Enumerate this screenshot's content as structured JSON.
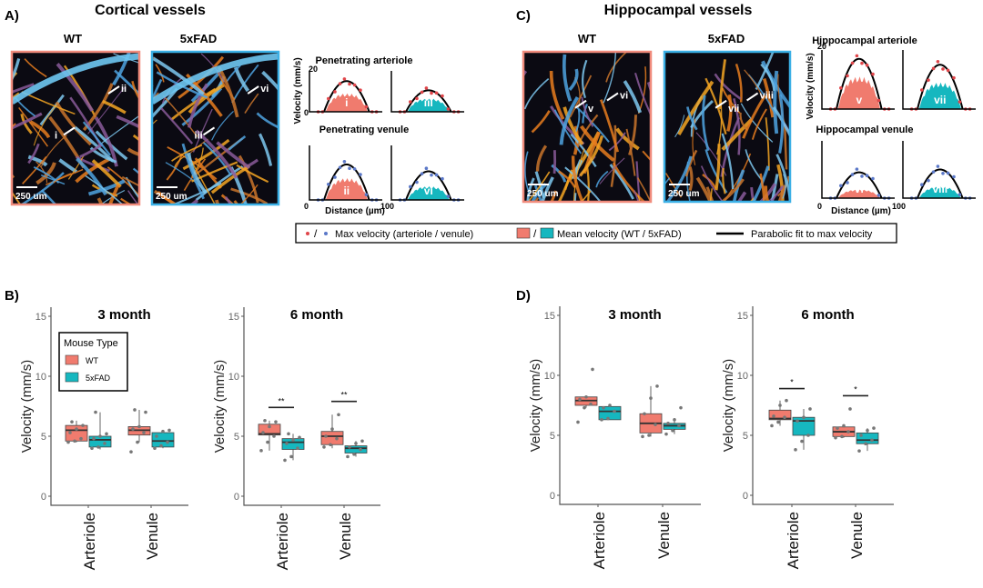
{
  "colors": {
    "wt": "#f07b6e",
    "fad": "#16b7bf",
    "wt_border": "#f08b7c",
    "fad_border": "#3bb0e6",
    "art_dot": "#e0454a",
    "ven_dot": "#5b78c8"
  },
  "panelA": {
    "letter": "A)",
    "title": "Cortical vessels",
    "img_labels": [
      "WT",
      "5xFAD"
    ],
    "scale_bar": "250 um",
    "roi_wt": [
      "i",
      "ii"
    ],
    "roi_fad": [
      "iii",
      "vi"
    ],
    "row_titles": [
      "Penetrating arteriole",
      "Penetrating venule"
    ],
    "ylabel": "Velocity (mm/s)",
    "xlabel": "Distance (µm)",
    "ymax_label": "20",
    "y0_label": "0",
    "x0_label": "0",
    "xmax_label": "100"
  },
  "panelC": {
    "letter": "C)",
    "title": "Hippocampal vessels",
    "img_labels": [
      "WT",
      "5xFAD"
    ],
    "scale_bar": "250 um",
    "roi_wt": [
      "v",
      "vi"
    ],
    "roi_fad": [
      "vii",
      "viii"
    ],
    "row_titles": [
      "Hippocampal arteriole",
      "Hippocampal venule"
    ],
    "ylabel": "Velocity (mm/s)",
    "xlabel": "Distance (µm)",
    "ymax_label": "20",
    "y0_label": "0",
    "x0_label": "0",
    "xmax_label": "100"
  },
  "legend": {
    "slash": "/",
    "max_label": "Max velocity (arteriole / venule)",
    "mean_label": "Mean velocity (WT / 5xFAD)",
    "fit_label": "Parabolic fit to max velocity"
  },
  "chart_data": [
    {
      "type": "line",
      "panel": "A",
      "title": "Penetrating arteriole",
      "label": "i",
      "group": "WT",
      "vessel": "arteriole",
      "ylim": [
        0,
        20
      ],
      "xlim": [
        0,
        100
      ],
      "max_peak": 15,
      "mean_peak": 9
    },
    {
      "type": "line",
      "panel": "A",
      "title": "Penetrating arteriole",
      "label": "iii",
      "group": "5xFAD",
      "vessel": "arteriole",
      "ylim": [
        0,
        20
      ],
      "xlim": [
        0,
        100
      ],
      "max_peak": 10.5,
      "mean_peak": 6.5
    },
    {
      "type": "line",
      "panel": "A",
      "title": "Penetrating venule",
      "label": "ii",
      "group": "WT",
      "vessel": "venule",
      "ylim": [
        0,
        20
      ],
      "xlim": [
        0,
        100
      ],
      "max_peak": 13,
      "mean_peak": 8
    },
    {
      "type": "line",
      "panel": "A",
      "title": "Penetrating venule",
      "label": "vi",
      "group": "5xFAD",
      "vessel": "venule",
      "ylim": [
        0,
        20
      ],
      "xlim": [
        0,
        100
      ],
      "max_peak": 10.5,
      "mean_peak": 5
    },
    {
      "type": "line",
      "panel": "C",
      "title": "Hippocampal arteriole",
      "label": "v",
      "group": "WT",
      "vessel": "arteriole",
      "ylim": [
        0,
        20
      ],
      "xlim": [
        0,
        100
      ],
      "max_peak": 17,
      "mean_peak": 11
    },
    {
      "type": "line",
      "panel": "C",
      "title": "Hippocampal arteriole",
      "label": "vii",
      "group": "5xFAD",
      "vessel": "arteriole",
      "ylim": [
        0,
        20
      ],
      "xlim": [
        0,
        100
      ],
      "max_peak": 15,
      "mean_peak": 9
    },
    {
      "type": "line",
      "panel": "C",
      "title": "Hippocampal venule",
      "label": "vi",
      "group": "WT",
      "vessel": "venule",
      "ylim": [
        0,
        20
      ],
      "xlim": [
        0,
        100
      ],
      "max_peak": 9,
      "mean_peak": 3
    },
    {
      "type": "line",
      "panel": "C",
      "title": "Hippocampal venule",
      "label": "viii",
      "group": "5xFAD",
      "vessel": "venule",
      "ylim": [
        0,
        20
      ],
      "xlim": [
        0,
        100
      ],
      "max_peak": 10,
      "mean_peak": 4
    },
    {
      "type": "box",
      "panel": "B",
      "title": "3 month",
      "ylabel": "Velocity (mm/s)",
      "ylim": [
        0,
        15
      ],
      "yticks": [
        "0",
        "5",
        "10",
        "15"
      ],
      "categories": [
        "Arteriole",
        "Venule"
      ],
      "legend": {
        "title": "Mouse Type",
        "entries": [
          "WT",
          "5xFAD"
        ]
      },
      "boxes": [
        {
          "cat": 0,
          "group": "WT",
          "min": 4.5,
          "q1": 4.6,
          "median": 5.5,
          "q3": 5.9,
          "max": 6.3,
          "points": [
            4.5,
            4.6,
            4.8,
            5.3,
            5.6,
            5.9,
            6.2
          ]
        },
        {
          "cat": 0,
          "group": "5xFAD",
          "min": 3.9,
          "q1": 4.1,
          "median": 4.7,
          "q3": 5.0,
          "max": 7.0,
          "points": [
            4.0,
            4.1,
            4.4,
            4.8,
            5.0,
            5.2,
            7.0
          ]
        },
        {
          "cat": 1,
          "group": "WT",
          "min": 4.5,
          "q1": 5.1,
          "median": 5.5,
          "q3": 5.8,
          "max": 7.2,
          "points": [
            3.7,
            4.5,
            5.3,
            5.6,
            5.8,
            7.0,
            7.2
          ]
        },
        {
          "cat": 1,
          "group": "5xFAD",
          "min": 4.0,
          "q1": 4.1,
          "median": 4.6,
          "q3": 5.3,
          "max": 5.5,
          "points": [
            4.0,
            4.2,
            4.5,
            5.0,
            5.4,
            5.5
          ]
        }
      ],
      "significance": []
    },
    {
      "type": "box",
      "panel": "B",
      "title": "6 month",
      "ylabel": "Velocity (mm/s)",
      "ylim": [
        0,
        15
      ],
      "yticks": [
        "0",
        "5",
        "10",
        "15"
      ],
      "categories": [
        "Arteriole",
        "Venule"
      ],
      "boxes": [
        {
          "cat": 0,
          "group": "WT",
          "min": 3.8,
          "q1": 5.1,
          "median": 5.2,
          "q3": 6.0,
          "max": 6.3,
          "points": [
            3.8,
            4.5,
            5.0,
            5.3,
            5.8,
            6.2,
            6.3
          ]
        },
        {
          "cat": 0,
          "group": "5xFAD",
          "min": 3.0,
          "q1": 3.9,
          "median": 4.5,
          "q3": 4.8,
          "max": 5.2,
          "points": [
            3.0,
            3.3,
            4.0,
            4.4,
            4.7,
            4.9,
            5.2
          ]
        },
        {
          "cat": 1,
          "group": "WT",
          "min": 4.0,
          "q1": 4.3,
          "median": 5.0,
          "q3": 5.4,
          "max": 6.8,
          "points": [
            4.1,
            4.3,
            4.8,
            5.0,
            5.6,
            6.8
          ]
        },
        {
          "cat": 1,
          "group": "5xFAD",
          "min": 3.3,
          "q1": 3.6,
          "median": 4.0,
          "q3": 4.2,
          "max": 4.6,
          "points": [
            3.3,
            3.5,
            3.9,
            4.1,
            4.4,
            4.6
          ]
        }
      ],
      "significance": [
        {
          "cat": 0,
          "y": 7.4,
          "label": "**"
        },
        {
          "cat": 1,
          "y": 7.9,
          "label": "**"
        }
      ]
    },
    {
      "type": "box",
      "panel": "D",
      "title": "3 month",
      "ylabel": "Velocity (mm/s)",
      "ylim": [
        0,
        15
      ],
      "yticks": [
        "0",
        "5",
        "10",
        "15"
      ],
      "categories": [
        "Arteriole",
        "Venule"
      ],
      "boxes": [
        {
          "cat": 0,
          "group": "WT",
          "min": 7.3,
          "q1": 7.5,
          "median": 7.9,
          "q3": 8.2,
          "max": 8.2,
          "points": [
            6.1,
            7.3,
            7.6,
            8.0,
            8.2,
            10.5
          ]
        },
        {
          "cat": 0,
          "group": "5xFAD",
          "min": 6.3,
          "q1": 6.3,
          "median": 7.0,
          "q3": 7.4,
          "max": 7.5,
          "points": [
            6.3,
            6.4,
            7.0,
            7.3,
            7.5
          ]
        },
        {
          "cat": 1,
          "group": "WT",
          "min": 4.9,
          "q1": 5.2,
          "median": 6.0,
          "q3": 6.8,
          "max": 9.1,
          "points": [
            4.9,
            5.0,
            5.9,
            6.8,
            8.1,
            9.1
          ]
        },
        {
          "cat": 1,
          "group": "5xFAD",
          "min": 5.1,
          "q1": 5.5,
          "median": 5.8,
          "q3": 6.0,
          "max": 6.3,
          "points": [
            5.1,
            5.4,
            5.8,
            6.0,
            6.3,
            7.3
          ]
        }
      ],
      "significance": []
    },
    {
      "type": "box",
      "panel": "D",
      "title": "6 month",
      "ylabel": "Velocity (mm/s)",
      "ylim": [
        0,
        15
      ],
      "yticks": [
        "0",
        "5",
        "10",
        "15"
      ],
      "categories": [
        "Arteriole",
        "Venule"
      ],
      "boxes": [
        {
          "cat": 0,
          "group": "WT",
          "min": 5.8,
          "q1": 6.3,
          "median": 6.4,
          "q3": 7.1,
          "max": 7.9,
          "points": [
            5.8,
            6.1,
            6.5,
            6.6,
            7.5,
            7.9
          ]
        },
        {
          "cat": 0,
          "group": "5xFAD",
          "min": 3.8,
          "q1": 5.0,
          "median": 6.2,
          "q3": 6.5,
          "max": 7.2,
          "points": [
            3.8,
            4.5,
            5.0,
            6.2,
            6.5,
            7.2
          ]
        },
        {
          "cat": 1,
          "group": "WT",
          "min": 4.8,
          "q1": 4.9,
          "median": 5.3,
          "q3": 5.7,
          "max": 5.8,
          "points": [
            4.8,
            4.9,
            5.3,
            5.6,
            5.8,
            7.2
          ]
        },
        {
          "cat": 1,
          "group": "5xFAD",
          "min": 3.7,
          "q1": 4.3,
          "median": 4.6,
          "q3": 5.2,
          "max": 5.6,
          "points": [
            3.7,
            4.3,
            4.6,
            5.0,
            5.4,
            5.6
          ]
        }
      ],
      "significance": [
        {
          "cat": 0,
          "y": 8.9,
          "label": "*"
        },
        {
          "cat": 1,
          "y": 8.3,
          "label": "*"
        }
      ]
    }
  ],
  "panelB": {
    "letter": "B)"
  },
  "panelD": {
    "letter": "D)"
  }
}
